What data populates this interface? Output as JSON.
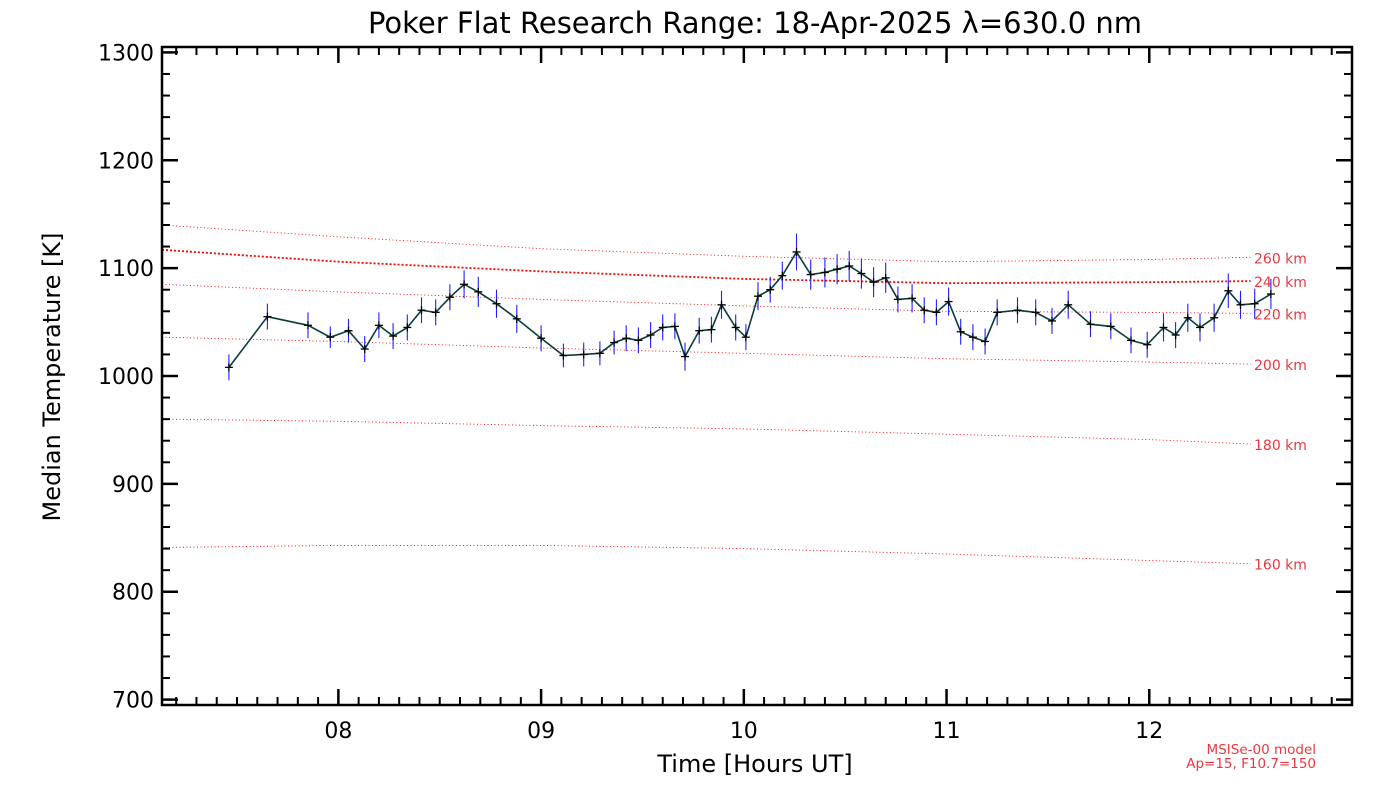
{
  "chart_data": {
    "type": "line",
    "title": "Poker Flat Research Range: 18-Apr-2025 λ=630.0 nm",
    "xlabel": "Time [Hours UT]",
    "ylabel": "Median Temperature [K]",
    "xlim": [
      7.13,
      13.0
    ],
    "ylim": [
      695,
      1305
    ],
    "xticks": [
      8,
      9,
      10,
      11,
      12
    ],
    "xtick_labels": [
      "08",
      "09",
      "10",
      "11",
      "12"
    ],
    "yticks": [
      700,
      800,
      900,
      1000,
      1100,
      1200,
      1300
    ],
    "ytick_labels": [
      "700",
      "800",
      "900",
      "1000",
      "1100",
      "1200",
      "1300"
    ],
    "grid": false,
    "colors": {
      "data_line": "#0a3d40",
      "error_bar": "#1f1fff",
      "model": "#ff0000",
      "annotation": "#e8393f",
      "axis": "#000000"
    },
    "series": [
      {
        "name": "Median Temperature",
        "x": [
          7.46,
          7.65,
          7.85,
          7.96,
          8.05,
          8.13,
          8.2,
          8.27,
          8.34,
          8.41,
          8.48,
          8.55,
          8.62,
          8.69,
          8.78,
          8.88,
          9.0,
          9.11,
          9.21,
          9.29,
          9.36,
          9.42,
          9.48,
          9.54,
          9.6,
          9.66,
          9.71,
          9.78,
          9.84,
          9.89,
          9.96,
          10.01,
          10.07,
          10.13,
          10.19,
          10.26,
          10.33,
          10.4,
          10.46,
          10.52,
          10.58,
          10.64,
          10.7,
          10.76,
          10.83,
          10.89,
          10.95,
          11.01,
          11.07,
          11.13,
          11.19,
          11.25,
          11.35,
          11.44,
          11.52,
          11.6,
          11.71,
          11.81,
          11.91,
          11.99,
          12.07,
          12.13,
          12.19,
          12.25,
          12.32,
          12.39,
          12.45,
          12.52,
          12.6
        ],
        "y": [
          1008,
          1055,
          1047,
          1036,
          1042,
          1025,
          1047,
          1037,
          1045,
          1061,
          1059,
          1073,
          1085,
          1078,
          1067,
          1053,
          1035,
          1019,
          1020,
          1021,
          1031,
          1035,
          1033,
          1038,
          1045,
          1046,
          1018,
          1042,
          1043,
          1066,
          1045,
          1036,
          1074,
          1080,
          1093,
          1115,
          1094,
          1096,
          1099,
          1102,
          1095,
          1087,
          1091,
          1071,
          1072,
          1061,
          1059,
          1069,
          1041,
          1036,
          1032,
          1059,
          1061,
          1059,
          1051,
          1066,
          1048,
          1046,
          1033,
          1029,
          1045,
          1038,
          1054,
          1045,
          1054,
          1079,
          1066,
          1067,
          1076
        ],
        "yerr": [
          12,
          12,
          12,
          10,
          11,
          12,
          12,
          12,
          12,
          12,
          12,
          12,
          13,
          14,
          13,
          13,
          12,
          11,
          11,
          11,
          11,
          12,
          12,
          12,
          12,
          12,
          13,
          12,
          12,
          13,
          12,
          12,
          13,
          12,
          13,
          17,
          14,
          14,
          14,
          14,
          14,
          14,
          14,
          12,
          13,
          12,
          12,
          13,
          12,
          12,
          12,
          12,
          12,
          12,
          12,
          13,
          12,
          12,
          12,
          12,
          13,
          12,
          13,
          13,
          13,
          16,
          13,
          14,
          14
        ]
      }
    ],
    "model_lines": [
      {
        "label": "160 km",
        "x": [
          7.13,
          8.0,
          9.0,
          10.0,
          11.0,
          12.0,
          12.5
        ],
        "y": [
          841,
          843,
          843,
          840,
          835,
          829,
          826
        ],
        "width": 0.9
      },
      {
        "label": "180 km",
        "x": [
          7.13,
          8.0,
          9.0,
          10.0,
          11.0,
          12.0,
          12.5
        ],
        "y": [
          960,
          958,
          954,
          951,
          946,
          941,
          937
        ],
        "width": 0.9
      },
      {
        "label": "200 km",
        "x": [
          7.13,
          8.0,
          9.0,
          10.0,
          11.0,
          12.0,
          12.5
        ],
        "y": [
          1036,
          1032,
          1026,
          1021,
          1016,
          1013,
          1011
        ],
        "width": 0.9
      },
      {
        "label": "220 km",
        "x": [
          7.13,
          8.0,
          9.0,
          10.0,
          11.0,
          12.0,
          12.5
        ],
        "y": [
          1085,
          1078,
          1071,
          1065,
          1060,
          1059,
          1058
        ],
        "width": 0.9
      },
      {
        "label": "240 km",
        "x": [
          7.13,
          8.0,
          9.0,
          10.0,
          11.0,
          12.0,
          12.5
        ],
        "y": [
          1117,
          1106,
          1097,
          1090,
          1086,
          1087,
          1088
        ],
        "width": 1.8
      },
      {
        "label": "260 km",
        "x": [
          7.13,
          8.0,
          9.0,
          10.0,
          11.0,
          12.0,
          12.5
        ],
        "y": [
          1140,
          1129,
          1118,
          1111,
          1106,
          1108,
          1110
        ],
        "width": 0.9
      }
    ],
    "annotations": [
      "MSISe-00 model",
      "Ap=15, F10.7=150"
    ]
  }
}
